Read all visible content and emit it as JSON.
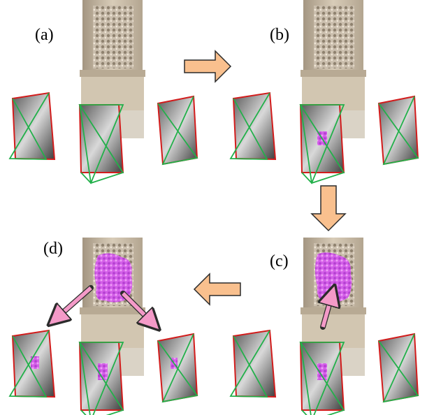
{
  "panels": {
    "a": {
      "label": "(a)"
    },
    "b": {
      "label": "(b)"
    },
    "c": {
      "label": "(c)"
    },
    "d": {
      "label": "(d)"
    }
  },
  "colors": {
    "arrow_fill": "#f9c08e",
    "arrow_stroke": "#2b2b2b",
    "pink_arrow": "#f49ac8",
    "frame_red": "#d21c1c",
    "frame_green": "#22b04a",
    "reconstruction": "#cf58e6",
    "stone": "#c9bba6",
    "stone_dark": "#9c8e7a"
  }
}
